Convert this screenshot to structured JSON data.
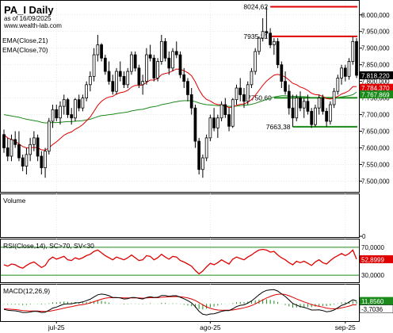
{
  "header": {
    "title": "PA_I Daily",
    "asof": "as of 16/09/2025",
    "site": "www.wealth-lab.com"
  },
  "colors": {
    "up_candle": "#ffffff",
    "down_candle": "#000000",
    "ema21": "#e00000",
    "ema70": "#1a8a1a",
    "level_red": "#e00000",
    "level_green": "#1a8a1a",
    "rsi": "#e00000",
    "rsi_bands": "#1a8a1a",
    "macd": "#000000",
    "signal": "#e00000",
    "histogram": "#1a8a1a",
    "price_badge": "#000000",
    "ema21_badge": "#e00000",
    "ema70_badge": "#1a8a1a",
    "grid": "#d0d0d0"
  },
  "chart_data": [
    {
      "type": "candlestick",
      "name": "price-pane",
      "legend": [
        "EMA(Close,21)",
        "EMA(Close,70)"
      ],
      "ylim": [
        7470000,
        8040000
      ],
      "y_ticks": [
        7500000,
        7550000,
        7600000,
        7650000,
        7700000,
        7750000,
        7800000,
        7850000,
        7900000,
        7950000,
        8000000
      ],
      "y_tick_labels": [
        "7.500,000",
        "7.550,000",
        "7.600,000",
        "7.650,000",
        "7.700,000",
        "7.750,000",
        "7.800,000",
        "7.850,000",
        "7.900,000",
        "7.950,000",
        "8.000,000"
      ],
      "x_labels": [
        {
          "bar": 14,
          "label": "jul-25"
        },
        {
          "bar": 55,
          "label": "ago-25"
        },
        {
          "bar": 91,
          "label": "sep-25"
        }
      ],
      "candles": [
        [
          7640000,
          7655000,
          7585000,
          7600000
        ],
        [
          7600000,
          7630000,
          7560000,
          7575000
        ],
        [
          7575000,
          7640000,
          7560000,
          7625000
        ],
        [
          7625000,
          7650000,
          7600000,
          7610000
        ],
        [
          7610000,
          7650000,
          7560000,
          7570000
        ],
        [
          7570000,
          7580000,
          7530000,
          7545000
        ],
        [
          7545000,
          7600000,
          7520000,
          7580000
        ],
        [
          7580000,
          7630000,
          7560000,
          7610000
        ],
        [
          7610000,
          7650000,
          7590000,
          7630000
        ],
        [
          7630000,
          7640000,
          7560000,
          7575000
        ],
        [
          7575000,
          7590000,
          7520000,
          7540000
        ],
        [
          7540000,
          7600000,
          7510000,
          7590000
        ],
        [
          7590000,
          7690000,
          7580000,
          7680000
        ],
        [
          7680000,
          7730000,
          7660000,
          7715000
        ],
        [
          7715000,
          7730000,
          7680000,
          7690000
        ],
        [
          7690000,
          7740000,
          7670000,
          7725000
        ],
        [
          7725000,
          7760000,
          7700000,
          7745000
        ],
        [
          7745000,
          7750000,
          7690000,
          7700000
        ],
        [
          7700000,
          7720000,
          7670000,
          7690000
        ],
        [
          7690000,
          7750000,
          7680000,
          7745000
        ],
        [
          7745000,
          7760000,
          7710000,
          7720000
        ],
        [
          7720000,
          7760000,
          7710000,
          7750000
        ],
        [
          7750000,
          7800000,
          7740000,
          7790000
        ],
        [
          7790000,
          7830000,
          7770000,
          7815000
        ],
        [
          7815000,
          7900000,
          7800000,
          7880000
        ],
        [
          7880000,
          7940000,
          7860000,
          7910000
        ],
        [
          7910000,
          7915000,
          7860000,
          7870000
        ],
        [
          7870000,
          7880000,
          7820000,
          7830000
        ],
        [
          7830000,
          7860000,
          7790000,
          7800000
        ],
        [
          7800000,
          7820000,
          7760000,
          7770000
        ],
        [
          7770000,
          7840000,
          7760000,
          7830000
        ],
        [
          7830000,
          7860000,
          7800000,
          7815000
        ],
        [
          7815000,
          7830000,
          7780000,
          7790000
        ],
        [
          7790000,
          7840000,
          7780000,
          7830000
        ],
        [
          7830000,
          7890000,
          7820000,
          7880000
        ],
        [
          7880000,
          7890000,
          7830000,
          7840000
        ],
        [
          7840000,
          7850000,
          7780000,
          7790000
        ],
        [
          7790000,
          7820000,
          7760000,
          7800000
        ],
        [
          7800000,
          7900000,
          7790000,
          7880000
        ],
        [
          7880000,
          7910000,
          7860000,
          7870000
        ],
        [
          7870000,
          7880000,
          7800000,
          7810000
        ],
        [
          7810000,
          7870000,
          7800000,
          7860000
        ],
        [
          7860000,
          7940000,
          7850000,
          7920000
        ],
        [
          7920000,
          7930000,
          7860000,
          7870000
        ],
        [
          7870000,
          7890000,
          7820000,
          7840000
        ],
        [
          7840000,
          7900000,
          7830000,
          7890000
        ],
        [
          7890000,
          7920000,
          7870000,
          7880000
        ],
        [
          7880000,
          7890000,
          7810000,
          7820000
        ],
        [
          7820000,
          7840000,
          7780000,
          7800000
        ],
        [
          7800000,
          7810000,
          7740000,
          7760000
        ],
        [
          7760000,
          7780000,
          7700000,
          7720000
        ],
        [
          7720000,
          7730000,
          7600000,
          7620000
        ],
        [
          7620000,
          7630000,
          7520000,
          7535000
        ],
        [
          7535000,
          7580000,
          7510000,
          7570000
        ],
        [
          7570000,
          7640000,
          7560000,
          7630000
        ],
        [
          7630000,
          7700000,
          7620000,
          7690000
        ],
        [
          7690000,
          7720000,
          7650000,
          7660000
        ],
        [
          7660000,
          7700000,
          7630000,
          7690000
        ],
        [
          7690000,
          7740000,
          7680000,
          7730000
        ],
        [
          7730000,
          7750000,
          7690000,
          7700000
        ],
        [
          7700000,
          7720000,
          7650000,
          7665000
        ],
        [
          7665000,
          7750000,
          7660000,
          7745000
        ],
        [
          7745000,
          7790000,
          7730000,
          7780000
        ],
        [
          7780000,
          7810000,
          7740000,
          7760000
        ],
        [
          7760000,
          7780000,
          7720000,
          7740000
        ],
        [
          7740000,
          7800000,
          7730000,
          7790000
        ],
        [
          7790000,
          7840000,
          7780000,
          7830000
        ],
        [
          7830000,
          7900000,
          7820000,
          7890000
        ],
        [
          7890000,
          7935310,
          7880000,
          7930000
        ],
        [
          7930000,
          7990000,
          7920000,
          7950000
        ],
        [
          7950000,
          8024620,
          7930000,
          7945000
        ],
        [
          7945000,
          7960000,
          7900000,
          7910000
        ],
        [
          7910000,
          7930000,
          7880000,
          7920000
        ],
        [
          7920000,
          7930000,
          7840000,
          7850000
        ],
        [
          7850000,
          7860000,
          7780000,
          7800000
        ],
        [
          7800000,
          7830000,
          7760000,
          7770000
        ],
        [
          7770000,
          7790000,
          7700000,
          7720000
        ],
        [
          7720000,
          7760000,
          7663380,
          7690000
        ],
        [
          7690000,
          7760000,
          7680000,
          7750000
        ],
        [
          7750000,
          7770000,
          7710000,
          7720000
        ],
        [
          7720000,
          7750000,
          7690000,
          7740000
        ],
        [
          7740000,
          7760000,
          7700000,
          7710000
        ],
        [
          7710000,
          7720000,
          7660000,
          7670000
        ],
        [
          7670000,
          7730000,
          7663380,
          7720000
        ],
        [
          7720000,
          7760000,
          7700000,
          7750000
        ],
        [
          7750000,
          7760000,
          7700000,
          7710000
        ],
        [
          7710000,
          7720000,
          7663380,
          7680000
        ],
        [
          7680000,
          7740000,
          7670000,
          7730000
        ],
        [
          7730000,
          7780000,
          7720000,
          7770000
        ],
        [
          7770000,
          7820000,
          7760000,
          7810000
        ],
        [
          7810000,
          7850000,
          7790000,
          7840000
        ],
        [
          7840000,
          7850000,
          7800000,
          7815000
        ],
        [
          7815000,
          7870000,
          7805000,
          7860000
        ],
        [
          7860000,
          7935310,
          7850000,
          7920000
        ],
        [
          7920000,
          7930000,
          7810000,
          7818220
        ]
      ],
      "ema21": [
        7640000,
        7630000,
        7625000,
        7620000,
        7612000,
        7604000,
        7600000,
        7600000,
        7602000,
        7600000,
        7594000,
        7593000,
        7600000,
        7610000,
        7618000,
        7628000,
        7638000,
        7644000,
        7648000,
        7656000,
        7662000,
        7670000,
        7681000,
        7693000,
        7710000,
        7728000,
        7740000,
        7748000,
        7753000,
        7755000,
        7762000,
        7766000,
        7768000,
        7773000,
        7783000,
        7788000,
        7788000,
        7789000,
        7797000,
        7804000,
        7804000,
        7809000,
        7820000,
        7824000,
        7826000,
        7832000,
        7837000,
        7836000,
        7832000,
        7826000,
        7817000,
        7799000,
        7775000,
        7757000,
        7746000,
        7741000,
        7734000,
        7730000,
        7730000,
        7727000,
        7721000,
        7723000,
        7728000,
        7731000,
        7732000,
        7737000,
        7745000,
        7758000,
        7773000,
        7788000,
        7801000,
        7810000,
        7819000,
        7821000,
        7818000,
        7813000,
        7804000,
        7794000,
        7790000,
        7783000,
        7779000,
        7773000,
        7764000,
        7760000,
        7759000,
        7755000,
        7748000,
        7747000,
        7749000,
        7755000,
        7762000,
        7766000,
        7772000,
        7784000,
        7784370
      ],
      "ema70": [
        7700000,
        7698000,
        7696000,
        7694000,
        7692000,
        7689000,
        7686000,
        7684000,
        7682000,
        7680000,
        7677000,
        7675000,
        7675000,
        7676000,
        7676000,
        7677000,
        7678000,
        7679000,
        7679000,
        7680000,
        7681000,
        7682000,
        7684000,
        7686000,
        7690000,
        7694000,
        7697000,
        7698000,
        7700000,
        7701000,
        7703000,
        7705000,
        7706000,
        7708000,
        7711000,
        7713000,
        7715000,
        7716000,
        7719000,
        7722000,
        7724000,
        7726000,
        7730000,
        7732000,
        7734000,
        7737000,
        7739000,
        7741000,
        7742000,
        7742000,
        7742000,
        7739000,
        7735000,
        7732000,
        7730000,
        7729000,
        7728000,
        7727000,
        7727000,
        7726000,
        7725000,
        7725000,
        7726000,
        7727000,
        7728000,
        7729000,
        7731000,
        7734000,
        7738000,
        7742000,
        7746000,
        7749000,
        7753000,
        7755000,
        7757000,
        7757000,
        7756000,
        7755000,
        7755000,
        7754000,
        7754000,
        7753000,
        7751000,
        7751000,
        7751000,
        7750000,
        7749000,
        7749000,
        7750000,
        7751000,
        7753000,
        7755000,
        7757000,
        7760000,
        7767869
      ],
      "levels": [
        {
          "label": "8024,62",
          "value": 8024620,
          "from_bar": 71,
          "color": "red"
        },
        {
          "label": "7935,31",
          "value": 7935310,
          "from_bar": 71,
          "color": "red"
        },
        {
          "label": "7750,60",
          "value": 7750600,
          "from_bar": 72,
          "color": "green"
        },
        {
          "label": "7663,38",
          "value": 7663380,
          "from_bar": 77,
          "color": "green"
        }
      ],
      "last_price_label": "7.818,220",
      "ema21_label": "7.784,370",
      "ema70_label": "7.767,869"
    },
    {
      "type": "bar",
      "name": "volume-pane",
      "title": "Volume",
      "ylim": [
        0,
        1
      ],
      "y_tick_labels": [
        "0"
      ],
      "values": []
    },
    {
      "type": "line",
      "name": "rsi-pane",
      "title": "RSI(Close,14), SC>70, SV<30",
      "ylim": [
        20,
        80
      ],
      "y_tick_labels": [
        "70,0000",
        "30,0000"
      ],
      "bands": [
        70,
        30
      ],
      "last_label": "52,8999",
      "values": [
        45,
        43,
        46,
        45,
        42,
        40,
        44,
        47,
        49,
        45,
        41,
        44,
        52,
        56,
        53,
        55,
        57,
        52,
        51,
        55,
        53,
        55,
        58,
        60,
        64,
        66,
        62,
        58,
        55,
        52,
        56,
        54,
        52,
        55,
        59,
        55,
        51,
        52,
        58,
        57,
        52,
        55,
        60,
        56,
        53,
        57,
        56,
        51,
        49,
        46,
        43,
        37,
        32,
        36,
        42,
        47,
        45,
        48,
        52,
        49,
        46,
        53,
        56,
        54,
        52,
        56,
        59,
        63,
        66,
        67,
        66,
        63,
        64,
        59,
        55,
        52,
        48,
        45,
        50,
        48,
        50,
        47,
        44,
        49,
        52,
        48,
        46,
        51,
        55,
        58,
        61,
        58,
        61,
        66,
        52.8999
      ]
    },
    {
      "type": "line",
      "name": "macd-pane",
      "title": "MACD(12,26,9)",
      "ylim": [
        -70,
        75
      ],
      "y_tick_labels": [
        "11,8560"
      ],
      "last_macd_label": "11,8560",
      "last_signal_label": "-3,7036",
      "macd": [
        -22,
        -26,
        -27,
        -28,
        -31,
        -35,
        -35,
        -33,
        -30,
        -31,
        -35,
        -34,
        -26,
        -17,
        -13,
        -7,
        -1,
        0,
        0,
        4,
        5,
        8,
        13,
        19,
        28,
        37,
        40,
        38,
        33,
        26,
        26,
        24,
        20,
        21,
        26,
        26,
        22,
        20,
        26,
        29,
        26,
        27,
        34,
        34,
        31,
        33,
        33,
        27,
        21,
        13,
        4,
        -11,
        -30,
        -42,
        -45,
        -41,
        -40,
        -36,
        -30,
        -27,
        -27,
        -20,
        -11,
        -6,
        -4,
        3,
        12,
        24,
        37,
        48,
        55,
        57,
        58,
        52,
        41,
        30,
        16,
        2,
        -5,
        -11,
        -14,
        -19,
        -25,
        -25,
        -24,
        -27,
        -32,
        -30,
        -25,
        -16,
        -6,
        -1,
        7,
        17,
        11.856
      ],
      "signal": [
        -20,
        -21,
        -22,
        -23,
        -25,
        -27,
        -28,
        -29,
        -29,
        -29,
        -30,
        -31,
        -30,
        -27,
        -24,
        -21,
        -17,
        -14,
        -11,
        -8,
        -5,
        -3,
        0,
        4,
        9,
        14,
        19,
        23,
        25,
        25,
        25,
        25,
        24,
        24,
        24,
        24,
        24,
        23,
        24,
        25,
        25,
        25,
        27,
        28,
        29,
        29,
        30,
        29,
        27,
        24,
        20,
        14,
        5,
        -4,
        -12,
        -18,
        -22,
        -25,
        -26,
        -26,
        -26,
        -25,
        -22,
        -19,
        -16,
        -12,
        -7,
        0,
        8,
        16,
        24,
        30,
        36,
        39,
        40,
        38,
        33,
        27,
        20,
        14,
        8,
        3,
        -3,
        -7,
        -10,
        -13,
        -17,
        -19,
        -20,
        -19,
        -16,
        -13,
        -9,
        -4,
        -3.7036
      ],
      "x_labels": [
        {
          "bar": 14,
          "label": "jul-25"
        },
        {
          "bar": 55,
          "label": "ago-25"
        },
        {
          "bar": 91,
          "label": "sep-25"
        }
      ]
    }
  ]
}
